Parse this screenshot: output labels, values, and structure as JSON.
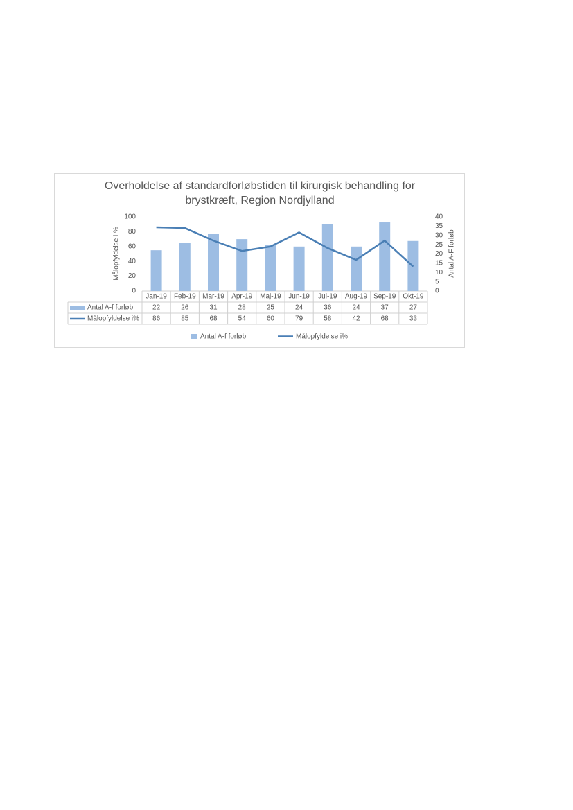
{
  "chart_data": {
    "type": "bar-line",
    "title": "Overholdelse af standardforløbstiden til kirurgisk behandling for brystkræft, Region  Nordjylland",
    "y_label": "Målopfyldelse i %",
    "y2_label": "Antal A-F forløb",
    "categories": [
      "Jan-19",
      "Feb-19",
      "Mar-19",
      "Apr-19",
      "Maj-19",
      "Jun-19",
      "Jul-19",
      "Aug-19",
      "Sep-19",
      "Okt-19"
    ],
    "series": [
      {
        "name": "Antal A-f forløb",
        "type": "bar",
        "axis": "y2",
        "color": "#9dbde3",
        "values": [
          22,
          26,
          31,
          28,
          25,
          24,
          36,
          24,
          37,
          27
        ]
      },
      {
        "name": "Målopfyldelse i%",
        "type": "line",
        "color": "#4a7fb5",
        "values": [
          86,
          85,
          68,
          54,
          60,
          79,
          58,
          42,
          68,
          33
        ]
      }
    ],
    "ylim": [
      0,
      100
    ],
    "yticks": [
      0,
      20,
      40,
      60,
      80,
      100
    ],
    "y2lim": [
      0,
      40
    ],
    "y2ticks": [
      0,
      5,
      10,
      15,
      20,
      25,
      30,
      35,
      40
    ]
  }
}
